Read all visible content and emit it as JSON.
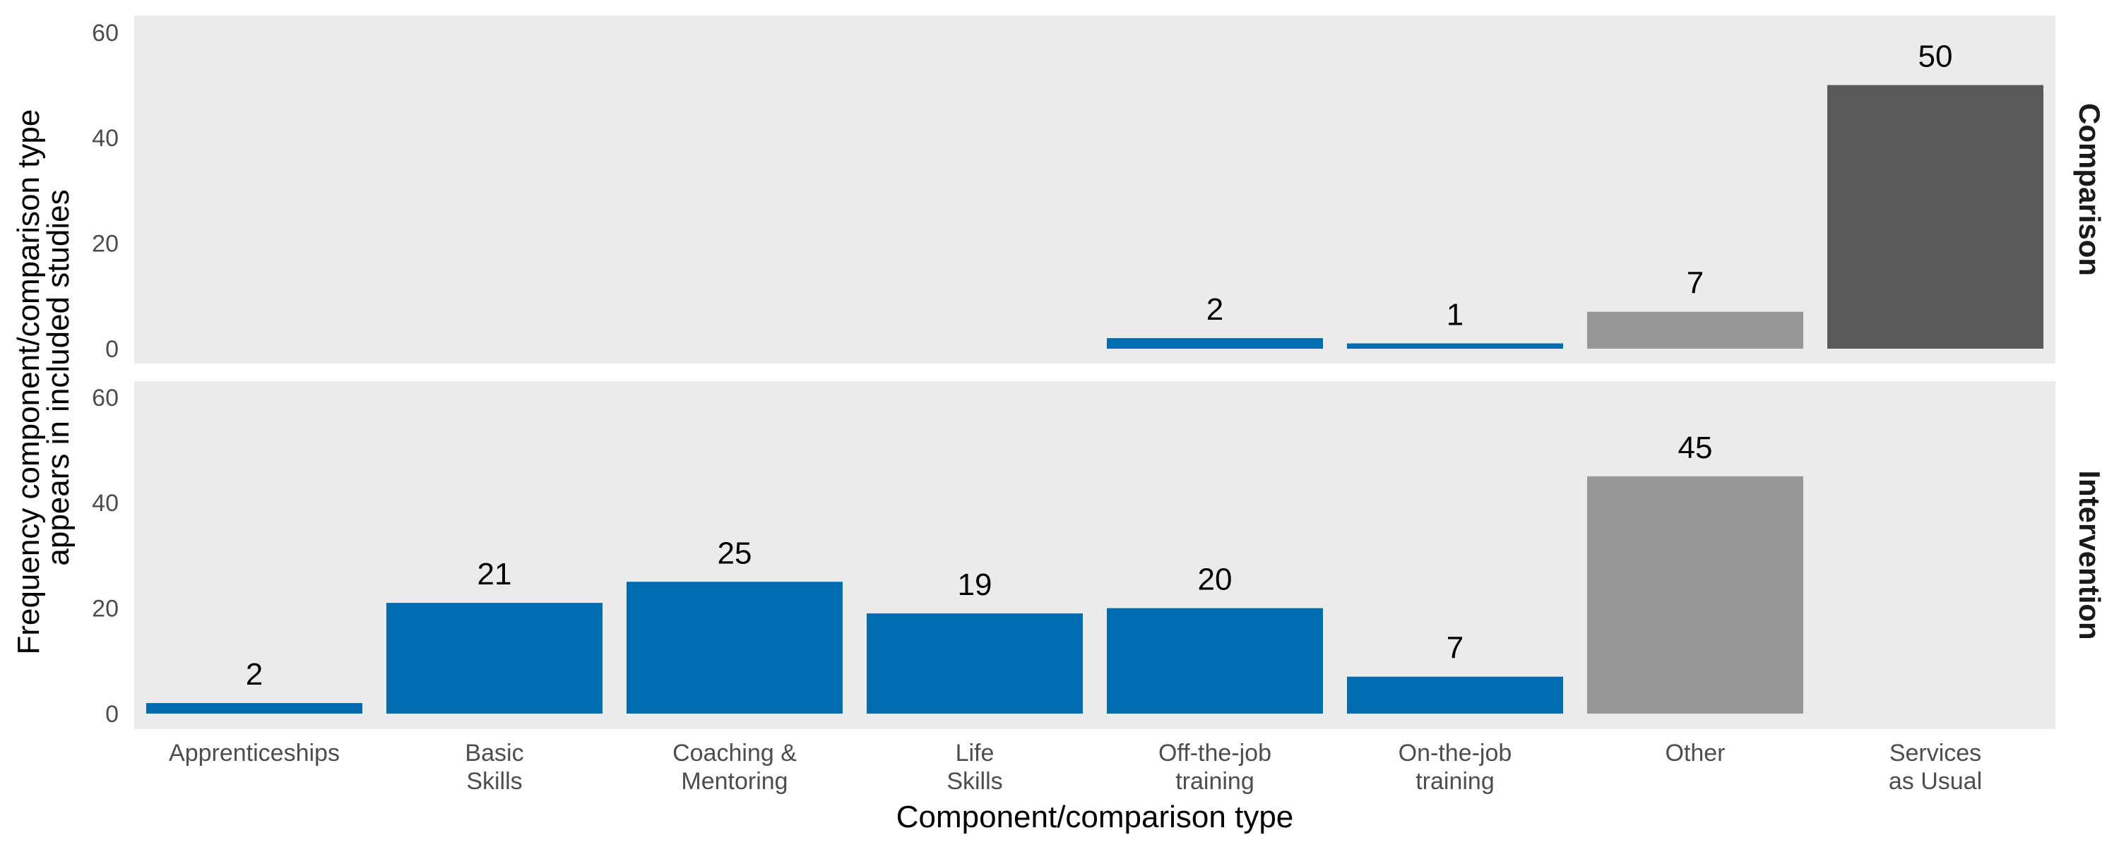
{
  "chart_data": {
    "type": "bar",
    "xlabel": "Component/comparison type",
    "ylabel_lines": [
      "Frequency component/comparison type",
      "appears in included studies"
    ],
    "ylim": [
      0,
      62
    ],
    "yticks": [
      "0",
      "20",
      "40",
      "60"
    ],
    "ytick_values": [
      0,
      20,
      40,
      60
    ],
    "categories": [
      [
        "Apprenticeships"
      ],
      [
        "Basic",
        "Skills"
      ],
      [
        "Coaching &",
        "Mentoring"
      ],
      [
        "Life",
        "Skills"
      ],
      [
        "Off-the-job",
        "training"
      ],
      [
        "On-the-job",
        "training"
      ],
      [
        "Other"
      ],
      [
        "Services",
        "as Usual"
      ]
    ],
    "facets": [
      {
        "name": "Comparison",
        "values": [
          null,
          null,
          null,
          null,
          2,
          1,
          7,
          50
        ],
        "labels": [
          "",
          "",
          "",
          "",
          "2",
          "1",
          "7",
          "50"
        ]
      },
      {
        "name": "Intervention",
        "values": [
          2,
          21,
          25,
          19,
          20,
          7,
          45,
          null
        ],
        "labels": [
          "2",
          "21",
          "25",
          "19",
          "20",
          "7",
          "45",
          ""
        ]
      }
    ],
    "bar_colors": [
      "#006cb0",
      "#006cb0",
      "#006cb0",
      "#006cb0",
      "#006cb0",
      "#006cb0",
      "#969696",
      "#5a5a5a"
    ],
    "panel_background": "#ebebeb",
    "grid": false,
    "legend": "none"
  }
}
